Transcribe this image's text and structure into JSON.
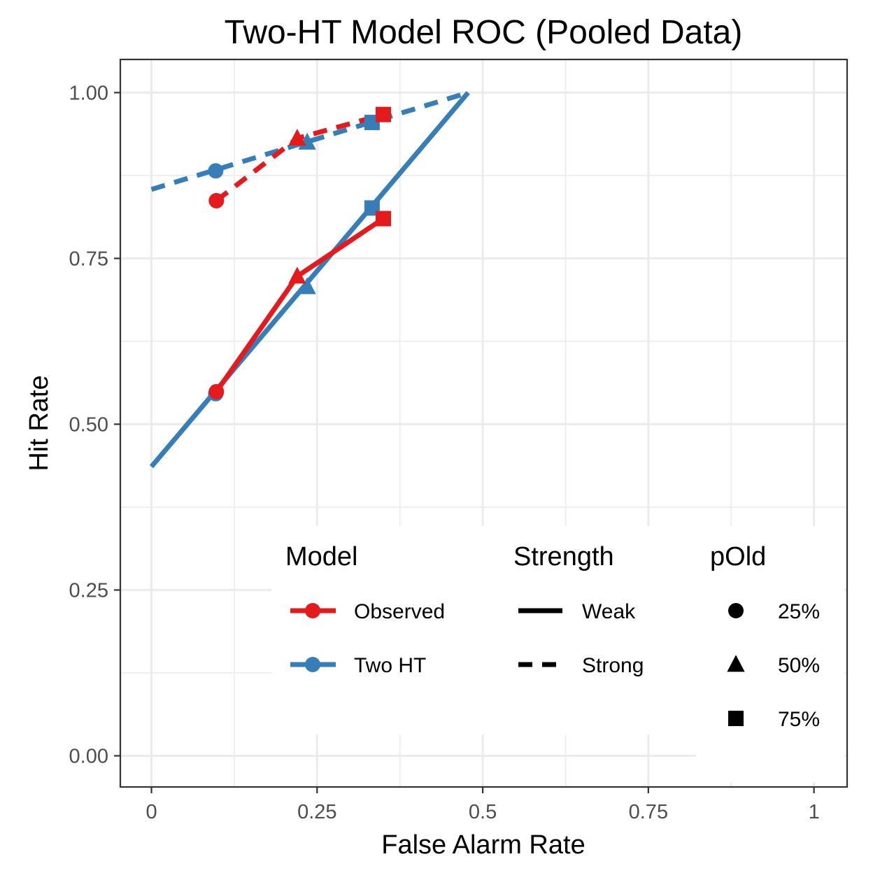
{
  "chart_data": {
    "type": "line",
    "title": "Two-HT Model ROC (Pooled Data)",
    "xlabel": "False Alarm Rate",
    "ylabel": "Hit Rate",
    "xlim": [
      -0.047,
      1.05
    ],
    "ylim": [
      -0.047,
      1.05
    ],
    "x_ticks": [
      0,
      0.25,
      0.5,
      0.75,
      1
    ],
    "x_tick_labels": [
      "0",
      "0.25",
      "0.5",
      "0.75",
      "1"
    ],
    "y_ticks": [
      0,
      0.25,
      0.5,
      0.75,
      1
    ],
    "y_tick_labels": [
      "0.00",
      "0.25",
      "0.50",
      "0.75",
      "1.00"
    ],
    "grid": true,
    "legend_position": "bottom-right",
    "colors": {
      "Observed": "#e41a1c",
      "Two HT": "#377eb8"
    },
    "shapes": {
      "25%": "circle",
      "50%": "triangle",
      "75%": "square"
    },
    "series": [
      {
        "model": "Two HT",
        "strength": "Weak",
        "line": [
          [
            0,
            0.436
          ],
          [
            0.478,
            1.0
          ]
        ],
        "points": [
          {
            "x": 0.097,
            "y": 0.546,
            "pOld": "25%"
          },
          {
            "x": 0.235,
            "y": 0.707,
            "pOld": "50%"
          },
          {
            "x": 0.333,
            "y": 0.826,
            "pOld": "75%"
          }
        ]
      },
      {
        "model": "Two HT",
        "strength": "Strong",
        "line": [
          [
            0,
            0.854
          ],
          [
            0.478,
            1.0
          ]
        ],
        "points": [
          {
            "x": 0.097,
            "y": 0.882,
            "pOld": "25%"
          },
          {
            "x": 0.235,
            "y": 0.925,
            "pOld": "50%"
          },
          {
            "x": 0.333,
            "y": 0.955,
            "pOld": "75%"
          }
        ]
      },
      {
        "model": "Observed",
        "strength": "Weak",
        "points": [
          {
            "x": 0.098,
            "y": 0.549,
            "pOld": "25%"
          },
          {
            "x": 0.22,
            "y": 0.723,
            "pOld": "50%"
          },
          {
            "x": 0.35,
            "y": 0.81,
            "pOld": "75%"
          }
        ]
      },
      {
        "model": "Observed",
        "strength": "Strong",
        "points": [
          {
            "x": 0.098,
            "y": 0.837,
            "pOld": "25%"
          },
          {
            "x": 0.22,
            "y": 0.931,
            "pOld": "50%"
          },
          {
            "x": 0.35,
            "y": 0.967,
            "pOld": "75%"
          }
        ]
      }
    ],
    "legend": {
      "model": {
        "title": "Model",
        "items": [
          "Observed",
          "Two HT"
        ]
      },
      "strength": {
        "title": "Strength",
        "items": [
          "Weak",
          "Strong"
        ]
      },
      "pold": {
        "title": "pOld",
        "items": [
          "25%",
          "50%",
          "75%"
        ]
      }
    }
  }
}
